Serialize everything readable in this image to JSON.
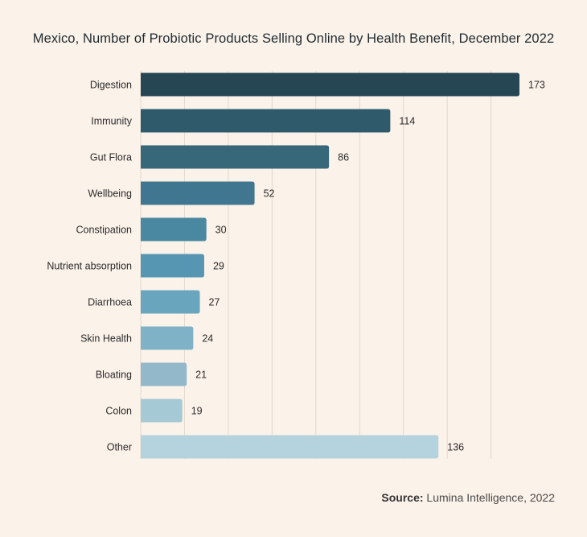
{
  "chart_data": {
    "type": "bar",
    "orientation": "horizontal",
    "title": "Mexico, Number of Probiotic Products Selling Online by Health Benefit, December 2022",
    "categories": [
      "Digestion",
      "Immunity",
      "Gut Flora",
      "Wellbeing",
      "Constipation",
      "Nutrient absorption",
      "Diarrhoea",
      "Skin Health",
      "Bloating",
      "Colon",
      "Other"
    ],
    "values": [
      173,
      114,
      86,
      52,
      30,
      29,
      27,
      24,
      21,
      19,
      136
    ],
    "colors": [
      "#264653",
      "#2f5a6c",
      "#376879",
      "#417690",
      "#4a88a2",
      "#5696b2",
      "#69a6bd",
      "#80b2c7",
      "#92b8ca",
      "#a6c9d6",
      "#b4d3df"
    ],
    "xlim": [
      0,
      180
    ],
    "grid": true,
    "data_labels": true
  },
  "source": {
    "prefix": "Source:",
    "text": " Lumina Intelligence, 2022"
  }
}
